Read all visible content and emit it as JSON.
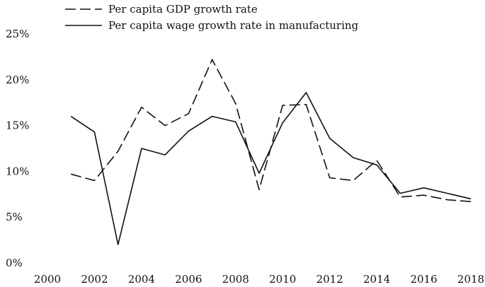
{
  "chart_data": {
    "type": "line",
    "title": "",
    "xlabel": "",
    "ylabel": "",
    "xlim": [
      2000,
      2018
    ],
    "ylim": [
      0,
      25
    ],
    "x_ticks": [
      2000,
      2002,
      2004,
      2006,
      2008,
      2010,
      2012,
      2014,
      2016,
      2018
    ],
    "x_tick_labels": [
      "2000",
      "2002",
      "2004",
      "2006",
      "2008",
      "2010",
      "2012",
      "2014",
      "2016",
      "2018"
    ],
    "y_ticks": [
      0,
      5,
      10,
      15,
      20,
      25
    ],
    "y_tick_labels": [
      "0%",
      "5%",
      "10%",
      "15%",
      "20%",
      "25%"
    ],
    "grid": false,
    "legend_position": "top-left",
    "series": [
      {
        "name": "Per capita GDP growth rate",
        "style": "dashed",
        "x": [
          2001,
          2002,
          2003,
          2004,
          2005,
          2006,
          2007,
          2008,
          2009,
          2010,
          2011,
          2012,
          2013,
          2014,
          2015,
          2016,
          2017,
          2018
        ],
        "values": [
          9.7,
          9.0,
          12.2,
          17.0,
          15.0,
          16.3,
          22.2,
          17.4,
          8.0,
          17.2,
          17.3,
          9.3,
          9.0,
          11.2,
          7.2,
          7.4,
          6.9,
          6.7
        ]
      },
      {
        "name": "Per capita wage growth rate in manufacturing",
        "style": "solid",
        "x": [
          2001,
          2002,
          2003,
          2004,
          2005,
          2006,
          2007,
          2008,
          2009,
          2010,
          2011,
          2012,
          2013,
          2014,
          2015,
          2016,
          2017,
          2018
        ],
        "values": [
          16.0,
          14.3,
          2.0,
          12.5,
          11.8,
          14.4,
          16.0,
          15.4,
          9.8,
          15.3,
          18.6,
          13.6,
          11.5,
          10.7,
          7.6,
          8.2,
          7.6,
          7.0
        ]
      }
    ]
  }
}
